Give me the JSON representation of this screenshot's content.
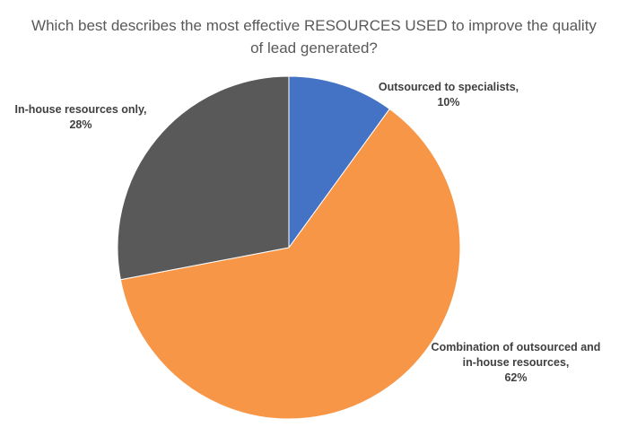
{
  "chart_data": {
    "type": "pie",
    "title": "Which best describes the most effective RESOURCES USED to improve the quality of lead generated?",
    "title_lines": [
      "Which best describes the most effective RESOURCES USED to improve the quality",
      "of lead generated?"
    ],
    "slices": [
      {
        "label": "Outsourced to specialists",
        "value": 10,
        "value_label": "10%",
        "color": "#4472C4",
        "label_lines": [
          "Outsourced to specialists,",
          "10%"
        ]
      },
      {
        "label": "Combination of outsourced and in-house resources",
        "value": 62,
        "value_label": "62%",
        "color": "#F79646",
        "label_lines": [
          "Combination of outsourced and",
          "in-house resources,",
          "62%"
        ]
      },
      {
        "label": "In-house resources only",
        "value": 28,
        "value_label": "28%",
        "color": "#595959",
        "label_lines": [
          "In-house resources only,",
          "28%"
        ]
      }
    ],
    "start_angle": "12 o'clock",
    "direction": "clockwise",
    "legend": "none"
  }
}
